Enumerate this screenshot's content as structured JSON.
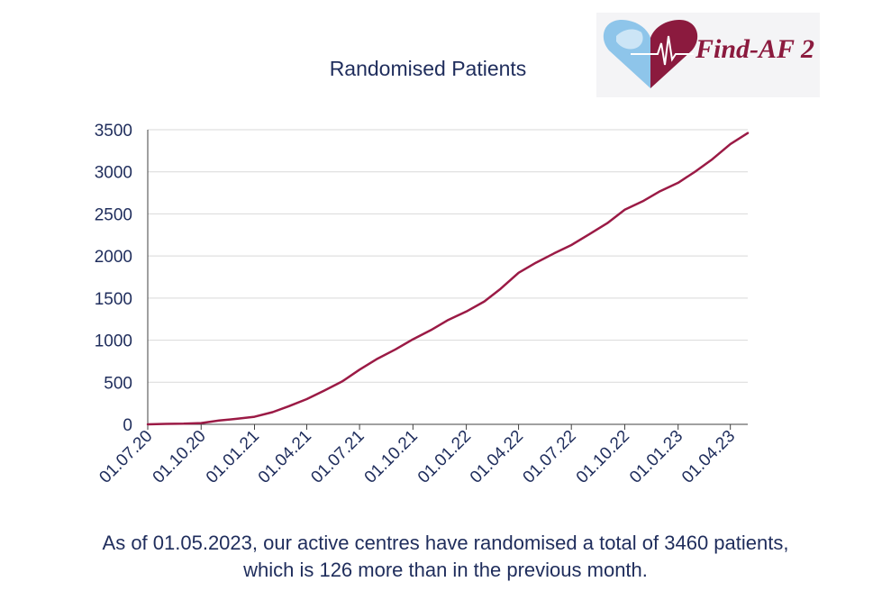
{
  "chart_data": {
    "type": "line",
    "title": "Randomised Patients",
    "xlabel": "",
    "ylabel": "",
    "ylim": [
      0,
      3500
    ],
    "yticks": [
      0,
      500,
      1000,
      1500,
      2000,
      2500,
      3000,
      3500
    ],
    "xlim": [
      "01.07.20",
      "01.05.23"
    ],
    "xticks": [
      "01.07.20",
      "01.10.20",
      "01.01.21",
      "01.04.21",
      "01.07.21",
      "01.10.21",
      "01.01.22",
      "01.04.22",
      "01.07.22",
      "01.10.22",
      "01.01.23",
      "01.04.23"
    ],
    "grid": "horizontal",
    "legend": "none",
    "series": [
      {
        "color": "#9b1a45",
        "points": [
          {
            "x": "01.07.20",
            "y": 0
          },
          {
            "x": "01.08.20",
            "y": 5
          },
          {
            "x": "01.09.20",
            "y": 8
          },
          {
            "x": "01.10.20",
            "y": 15
          },
          {
            "x": "01.11.20",
            "y": 45
          },
          {
            "x": "01.12.20",
            "y": 65
          },
          {
            "x": "01.01.21",
            "y": 90
          },
          {
            "x": "01.02.21",
            "y": 145
          },
          {
            "x": "01.03.21",
            "y": 215
          },
          {
            "x": "01.04.21",
            "y": 300
          },
          {
            "x": "01.05.21",
            "y": 400
          },
          {
            "x": "01.06.21",
            "y": 510
          },
          {
            "x": "01.07.21",
            "y": 650
          },
          {
            "x": "01.08.21",
            "y": 780
          },
          {
            "x": "01.09.21",
            "y": 890
          },
          {
            "x": "01.10.21",
            "y": 1010
          },
          {
            "x": "01.11.21",
            "y": 1120
          },
          {
            "x": "01.12.21",
            "y": 1240
          },
          {
            "x": "01.01.22",
            "y": 1340
          },
          {
            "x": "01.02.22",
            "y": 1460
          },
          {
            "x": "01.03.22",
            "y": 1610
          },
          {
            "x": "01.04.22",
            "y": 1800
          },
          {
            "x": "01.05.22",
            "y": 1920
          },
          {
            "x": "01.06.22",
            "y": 2030
          },
          {
            "x": "01.07.22",
            "y": 2130
          },
          {
            "x": "01.08.22",
            "y": 2260
          },
          {
            "x": "01.09.22",
            "y": 2390
          },
          {
            "x": "01.10.22",
            "y": 2550
          },
          {
            "x": "01.11.22",
            "y": 2650
          },
          {
            "x": "01.12.22",
            "y": 2770
          },
          {
            "x": "01.01.23",
            "y": 2870
          },
          {
            "x": "01.02.23",
            "y": 3010
          },
          {
            "x": "01.03.23",
            "y": 3150
          },
          {
            "x": "01.04.23",
            "y": 3330
          },
          {
            "x": "01.05.23",
            "y": 3460
          }
        ]
      }
    ]
  },
  "logo": {
    "text": "Find-AF 2",
    "heart_left_color": "#8ec5ea",
    "heart_right_color": "#8b1a3e"
  },
  "footer": {
    "line1": "As of 01.05.2023, our active centres have randomised a total of 3460 patients,",
    "line2": "which is 126 more than in the previous month."
  },
  "colors": {
    "text": "#1f2d5c",
    "line": "#9b1a45",
    "grid": "#d9d9d9"
  }
}
